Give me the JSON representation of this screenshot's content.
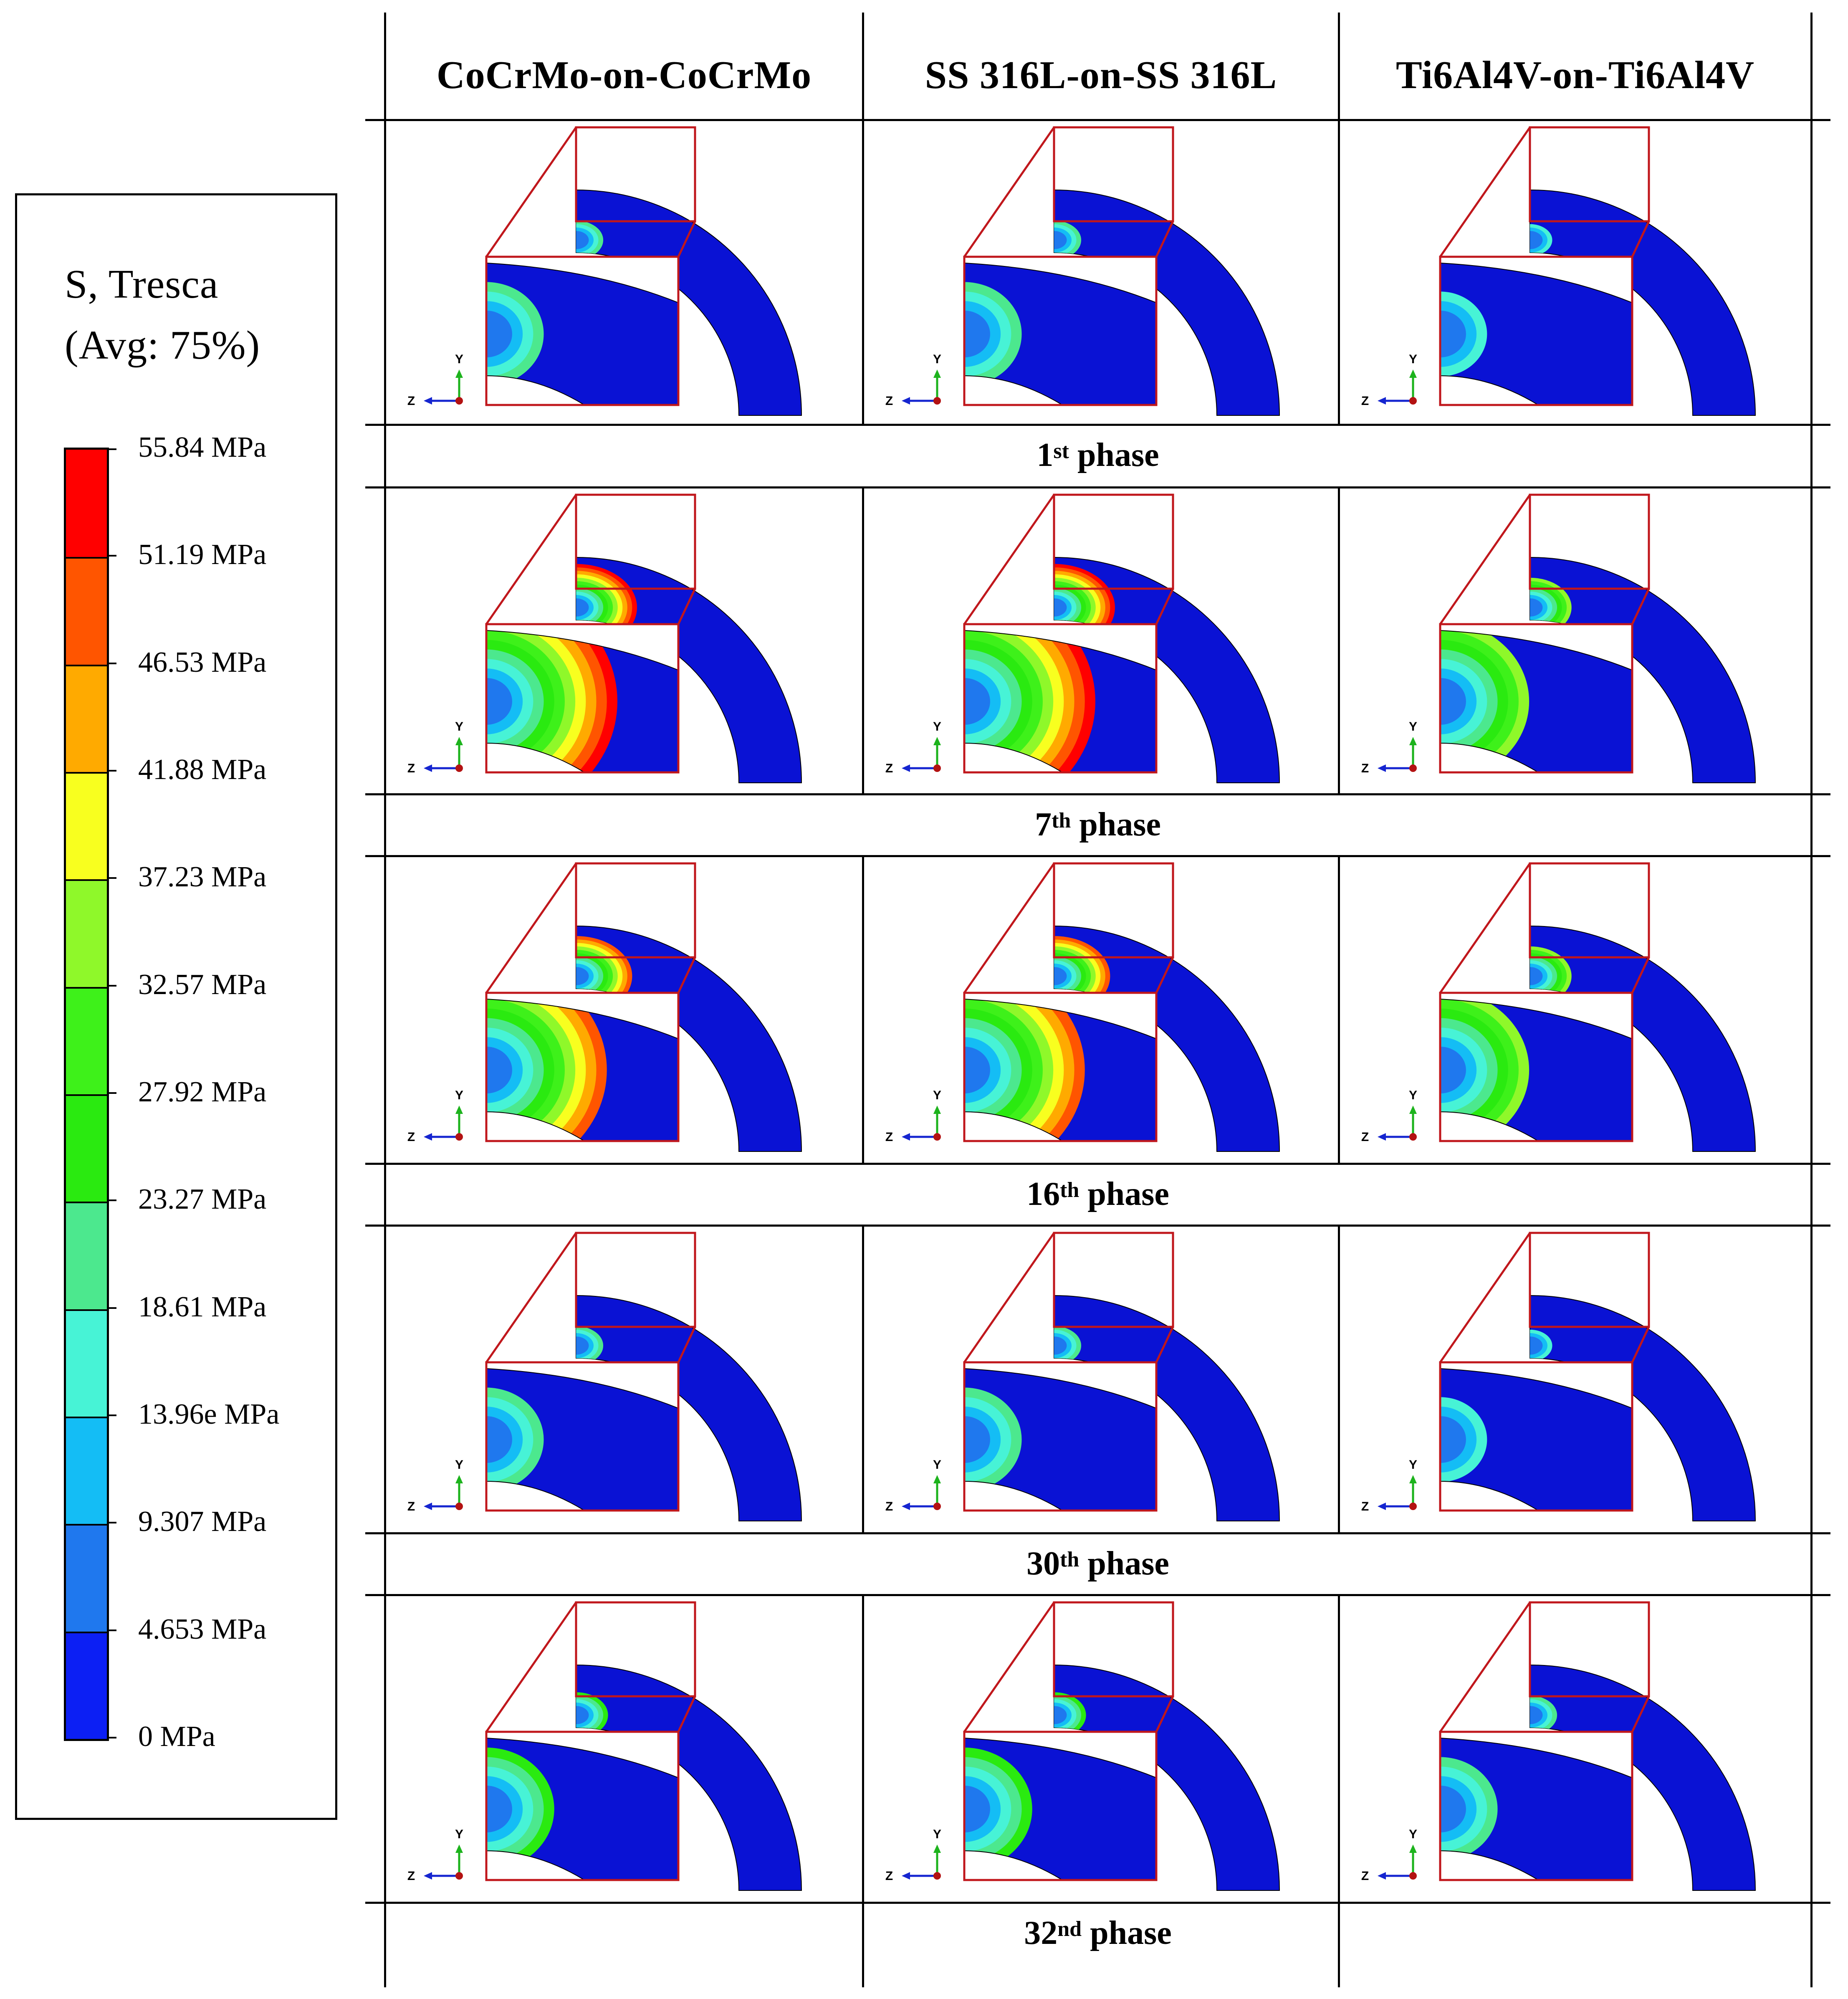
{
  "legend": {
    "title_line1": "S, Tresca",
    "title_line2": "(Avg: 75%)",
    "levels": [
      {
        "label": "55.84 MPa",
        "color": "#ff0000"
      },
      {
        "label": "51.19 MPa",
        "color": "#ff5500"
      },
      {
        "label": "46.53 MPa",
        "color": "#ffaa00"
      },
      {
        "label": "41.88 MPa",
        "color": "#f8ff1f"
      },
      {
        "label": "37.23 MPa",
        "color": "#8ff82a"
      },
      {
        "label": "32.57 MPa",
        "color": "#3ef11a"
      },
      {
        "label": "27.92 MPa",
        "color": "#2aea10"
      },
      {
        "label": "23.27 MPa",
        "color": "#4ce88e"
      },
      {
        "label": "18.61 MPa",
        "color": "#47f3d6"
      },
      {
        "label": "13.96e MPa",
        "color": "#14bdf5"
      },
      {
        "label": "9.307 MPa",
        "color": "#1f78ee"
      },
      {
        "label": "4.653 MPa",
        "color": "#0c1ff4"
      },
      {
        "label": "0 MPa",
        "color": null
      }
    ]
  },
  "columns": [
    "CoCrMo-on-CoCrMo",
    "SS 316L-on-SS 316L",
    "Ti6Al4V-on-Ti6Al4V"
  ],
  "phases": [
    {
      "num": "1",
      "sup": "st",
      "word": "phase"
    },
    {
      "num": "7",
      "sup": "th",
      "word": "phase"
    },
    {
      "num": "16",
      "sup": "th",
      "word": "phase"
    },
    {
      "num": "30",
      "sup": "th",
      "word": "phase"
    },
    {
      "num": "32",
      "sup": "nd",
      "word": "phase"
    }
  ],
  "axes_triad": {
    "y": "Y",
    "z": "Z"
  },
  "contour_levels_by_row": [
    [
      4,
      4,
      3
    ],
    [
      11,
      11,
      7
    ],
    [
      10,
      10,
      7
    ],
    [
      4,
      4,
      3
    ],
    [
      5,
      5,
      4
    ]
  ],
  "colors": {
    "body": "#0a12d4",
    "zoom_frame": "#c0171c"
  }
}
